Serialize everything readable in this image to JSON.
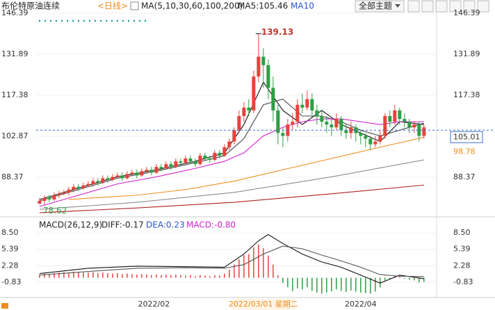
{
  "header": {
    "title": "布伦特原油连续",
    "period": "<日线>",
    "ma_legend": "MA(5,10,30,60,100,200)",
    "ma5": "MA5:105.46",
    "ma10": "MA10",
    "theme_button": "全部主题"
  },
  "chart_data": [
    {
      "type": "candlestick",
      "open": [
        79,
        80,
        81,
        80.5,
        82,
        82.5,
        83,
        84,
        85,
        84.5,
        85.5,
        86,
        87,
        86.5,
        88,
        87.5,
        88.5,
        89,
        88,
        89.5,
        90,
        89,
        90.5,
        91,
        90,
        92,
        91.5,
        93,
        92,
        94,
        93.5,
        95,
        94,
        93,
        96,
        95,
        94.5,
        97,
        96,
        99,
        101,
        105,
        110,
        113,
        112,
        124,
        131,
        128,
        120,
        112,
        104,
        103,
        107,
        108,
        114,
        113,
        116,
        112,
        110,
        108,
        107,
        106,
        109,
        105,
        104,
        106,
        104,
        103,
        102,
        100,
        101,
        103,
        110,
        108,
        112,
        109,
        108,
        106,
        107,
        103
      ],
      "high": [
        81,
        82,
        82,
        83,
        83.5,
        84,
        85,
        86,
        86,
        86.5,
        87,
        88,
        88,
        89,
        89,
        89.5,
        90,
        90,
        90.5,
        91,
        91,
        91.5,
        92,
        92,
        93,
        93,
        94,
        94,
        95,
        95,
        96,
        96,
        95,
        97,
        97,
        96,
        98,
        98,
        100,
        102,
        106,
        112,
        115,
        116,
        126,
        139.13,
        134,
        130,
        124,
        114,
        106,
        109,
        111,
        116,
        118,
        119,
        118,
        114,
        112,
        110,
        109,
        111,
        110,
        107,
        108,
        107,
        105,
        104,
        103,
        103,
        105,
        111,
        112,
        114,
        113,
        111,
        109,
        108,
        108,
        107
      ],
      "low": [
        78.9,
        78.62,
        79.5,
        80,
        81,
        82,
        82,
        83,
        83.5,
        84,
        85,
        85,
        85.5,
        86,
        86.5,
        87,
        88,
        87,
        87.5,
        89,
        88,
        88.5,
        90,
        89,
        89.5,
        90.5,
        91,
        91,
        91.5,
        92.5,
        93,
        93,
        92,
        92.5,
        94,
        93.5,
        94,
        95,
        95.5,
        98,
        100,
        104,
        108,
        110,
        111,
        122,
        120,
        116,
        108,
        100,
        99,
        101,
        105,
        106,
        111,
        112,
        110,
        107,
        106,
        104,
        103,
        105,
        103,
        102,
        102,
        101,
        100,
        99,
        98,
        99,
        100,
        102,
        106,
        107,
        107,
        106,
        104,
        104,
        101,
        102
      ],
      "close": [
        80,
        81,
        80.5,
        82,
        82.5,
        83,
        84,
        85,
        84.5,
        85.5,
        86,
        87,
        86.5,
        88,
        87.5,
        88.5,
        89,
        88,
        89.5,
        90,
        89,
        90.5,
        91,
        90,
        92,
        91.5,
        93,
        92,
        94,
        93.5,
        95,
        94,
        93,
        96,
        95,
        94.5,
        97,
        96,
        99,
        101,
        105,
        110,
        113,
        112,
        124,
        131,
        128,
        120,
        112,
        104,
        103,
        107,
        108,
        114,
        113,
        116,
        112,
        110,
        108,
        107,
        106,
        109,
        105,
        104,
        106,
        104,
        103,
        102,
        100,
        101,
        103,
        110,
        108,
        112,
        109,
        108,
        106,
        107,
        103,
        106
      ],
      "up_color": "#e8423c",
      "down_color": "#2f9e44",
      "xlim": [
        -0.7,
        81.6
      ],
      "ylim": [
        74.84,
        151.06
      ],
      "yticks": [
        146.39,
        131.89,
        117.38,
        102.87,
        88.37
      ],
      "xticks": [
        {
          "value": 23.5,
          "label": "2022/02"
        },
        {
          "value": 66,
          "label": "2022/04"
        }
      ],
      "cursor": {
        "value": 46,
        "label": "2022/03/01 星期二"
      },
      "lines": [
        {
          "color": "#111111",
          "x": [
            0,
            8,
            16,
            24,
            32,
            38,
            42,
            46,
            50,
            54,
            58,
            62,
            66,
            70,
            74,
            79
          ],
          "values": [
            80.5,
            84.5,
            88.5,
            91,
            94,
            97,
            107,
            122,
            112,
            107,
            112,
            107,
            104,
            101,
            108,
            107
          ]
        },
        {
          "color": "#444444",
          "x": [
            0,
            8,
            16,
            24,
            32,
            38,
            42,
            46,
            50,
            54,
            58,
            62,
            66,
            70,
            74,
            79
          ],
          "values": [
            80,
            84,
            88,
            90.5,
            93.5,
            96,
            102,
            114,
            116,
            110,
            110,
            108,
            105,
            103,
            105,
            107.5
          ]
        },
        {
          "color": "#d21fd2",
          "x": [
            0,
            8,
            16,
            24,
            32,
            38,
            42,
            46,
            50,
            54,
            58,
            62,
            66,
            70,
            74,
            79
          ],
          "values": [
            78,
            82,
            86,
            88.5,
            91.5,
            94,
            97,
            103,
            106,
            108,
            109,
            109,
            108,
            107,
            108,
            108
          ]
        },
        {
          "color": "#f08c1a",
          "x": [
            6,
            20,
            30,
            40,
            50,
            60,
            70,
            79
          ],
          "values": [
            80.5,
            82,
            84,
            87,
            91,
            95,
            99,
            102.5
          ]
        },
        {
          "color": "#8c8c8c",
          "x": [
            0,
            20,
            40,
            60,
            79
          ],
          "values": [
            77,
            79.5,
            83,
            88.5,
            94.5
          ]
        },
        {
          "color": "#b02020",
          "x": [
            0,
            20,
            40,
            60,
            79
          ],
          "values": [
            75.8,
            77.5,
            79.5,
            82.5,
            85.6
          ]
        }
      ],
      "last_price": 105.01,
      "last_price_color": "#3a6fd8",
      "marker_label": 98.78,
      "marker_color": "#f08c1a"
    },
    {
      "type": "macd",
      "title": "MACD(26,12,9)",
      "diff_label": "DIFF:-0.17",
      "dea_label": "DEA:0.23",
      "macd_label": "MACD:-0.80",
      "values": [
        0.6,
        0.8,
        0.7,
        0.9,
        1.0,
        1.1,
        1.0,
        1.2,
        1.1,
        1.0,
        1.0,
        1.1,
        0.9,
        1.0,
        0.9,
        0.8,
        0.9,
        0.7,
        0.8,
        0.7,
        0.6,
        0.7,
        0.6,
        0.5,
        0.6,
        0.5,
        0.6,
        0.5,
        0.6,
        0.5,
        0.4,
        0.5,
        0.3,
        0.5,
        0.4,
        0.3,
        0.5,
        0.4,
        0.8,
        1.5,
        2.5,
        3.5,
        4.3,
        4.5,
        5.8,
        6.3,
        5.6,
        4.2,
        2.5,
        0.5,
        -1.0,
        -1.8,
        -2.5,
        -2.0,
        -2.2,
        -1.8,
        -2.5,
        -2.8,
        -3.0,
        -2.8,
        -2.6,
        -2.2,
        -2.5,
        -2.7,
        -2.4,
        -2.6,
        -2.8,
        -2.9,
        -3.0,
        -2.6,
        -1.8,
        -0.5,
        -0.2,
        0.3,
        0.2,
        -0.2,
        -0.4,
        -0.5,
        -0.9,
        -0.8
      ],
      "up_color": "#e8423c",
      "down_color": "#2f9e44",
      "ylim": [
        -3.34,
        11.15
      ],
      "yticks": [
        {
          "value": 8.5,
          "label": "8.50"
        },
        5.39,
        2.28,
        -0.83
      ],
      "lines": [
        {
          "color": "#111111",
          "x": [
            0,
            10,
            20,
            30,
            38,
            42,
            45,
            47,
            50,
            54,
            58,
            62,
            66,
            70,
            74,
            79
          ],
          "values": [
            0.8,
            1.8,
            2.2,
            2.1,
            2.0,
            4.5,
            7.0,
            8.2,
            6.5,
            4.5,
            3.0,
            2.0,
            0.5,
            -1.0,
            0.5,
            -0.17
          ]
        },
        {
          "color": "#555555",
          "x": [
            0,
            10,
            20,
            30,
            38,
            42,
            46,
            50,
            54,
            58,
            62,
            66,
            70,
            74,
            79
          ],
          "values": [
            0.5,
            1.2,
            1.8,
            1.9,
            1.8,
            2.5,
            4.5,
            6.0,
            5.5,
            4.3,
            3.2,
            2.0,
            0.6,
            0.3,
            0.23
          ]
        }
      ]
    }
  ]
}
